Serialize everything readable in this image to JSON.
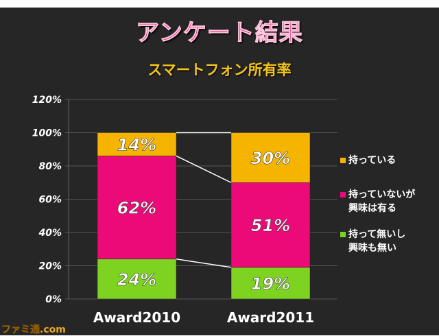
{
  "chart_data": {
    "type": "stacked-bar",
    "title": "アンケート結果",
    "subtitle": "スマートフォン所有率",
    "categories": [
      "Award2010",
      "Award2011"
    ],
    "series": [
      {
        "name": "持って無いし興味も無い",
        "legend_lines": [
          "持って無いし",
          "興味も無い"
        ],
        "values": [
          24,
          19
        ],
        "labels": [
          "24%",
          "19%"
        ],
        "color": "#7ed321"
      },
      {
        "name": "持っていないが興味は有る",
        "legend_lines": [
          "持っていないが",
          "興味は有る"
        ],
        "values": [
          62,
          51
        ],
        "labels": [
          "62%",
          "51%"
        ],
        "color": "#ec0a78"
      },
      {
        "name": "持っている",
        "legend_lines": [
          "持っている"
        ],
        "values": [
          14,
          30
        ],
        "labels": [
          "14%",
          "30%"
        ],
        "color": "#f4b400"
      }
    ],
    "yticks": [
      "0%",
      "20%",
      "40%",
      "60%",
      "80%",
      "100%",
      "120%"
    ],
    "ylim": [
      0,
      120
    ],
    "grid": true,
    "legend_placement": "right"
  },
  "watermark": "ファミ通.com"
}
